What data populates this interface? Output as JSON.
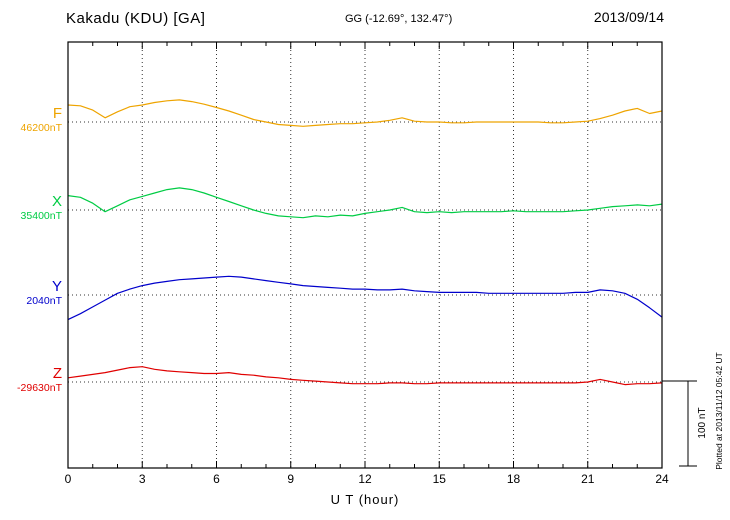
{
  "header": {
    "title": "Kakadu (KDU)  [GA]",
    "coords": "GG (-12.69°, 132.47°)",
    "date": "2013/09/14"
  },
  "axis": {
    "xlabel": "U T (hour)",
    "tick_hours": [
      0,
      3,
      6,
      9,
      12,
      15,
      18,
      21,
      24
    ],
    "tick_labels": [
      "0",
      "3",
      "6",
      "9",
      "12",
      "15",
      "18",
      "21",
      "24"
    ]
  },
  "scalebar": {
    "label": "100 nT",
    "span_nT": 100
  },
  "footer": {
    "plotted_at": "Plotted at 2013/11/12 05:42 UT"
  },
  "chart_data": {
    "type": "line",
    "title": "Kakadu (KDU) [GA] magnetogram 2013/09/14",
    "xlabel": "U T (hour)",
    "xlim": [
      0,
      24
    ],
    "x_step_hours": 0.5,
    "grid": "dotted vertical every 3 h, dotted baseline per component",
    "series": [
      {
        "name": "F",
        "baseline_label": "46200nT",
        "baseline_nT": 46200,
        "color": "#eea400",
        "offsets_nT": [
          20,
          19,
          14,
          5,
          12,
          18,
          20,
          23,
          25,
          26,
          24,
          21,
          17,
          13,
          8,
          3,
          0,
          -3,
          -4,
          -5,
          -4,
          -3,
          -2,
          -2,
          -1,
          0,
          2,
          5,
          1,
          0,
          0,
          -1,
          -1,
          0,
          0,
          0,
          0,
          0,
          0,
          -1,
          -1,
          0,
          1,
          4,
          8,
          13,
          16,
          10,
          13
        ]
      },
      {
        "name": "X",
        "baseline_label": "35400nT",
        "baseline_nT": 35400,
        "color": "#00cc44",
        "offsets_nT": [
          17,
          15,
          8,
          -2,
          5,
          12,
          16,
          20,
          24,
          26,
          24,
          20,
          15,
          10,
          5,
          0,
          -4,
          -7,
          -8,
          -9,
          -7,
          -8,
          -6,
          -7,
          -4,
          -2,
          0,
          3,
          -2,
          -3,
          -2,
          -3,
          -2,
          -2,
          -2,
          -2,
          -1,
          -2,
          -2,
          -2,
          -2,
          -1,
          0,
          2,
          4,
          5,
          6,
          5,
          7
        ]
      },
      {
        "name": "Y",
        "baseline_label": "2040nT",
        "baseline_nT": 2040,
        "color": "#0000cc",
        "offsets_nT": [
          -29,
          -22,
          -14,
          -6,
          2,
          7,
          11,
          14,
          16,
          18,
          19,
          20,
          21,
          22,
          21,
          19,
          17,
          15,
          13,
          11,
          10,
          9,
          8,
          7,
          7,
          6,
          6,
          7,
          5,
          4,
          3,
          3,
          3,
          3,
          2,
          2,
          2,
          2,
          2,
          2,
          2,
          3,
          3,
          6,
          5,
          2,
          -5,
          -15,
          -26
        ]
      },
      {
        "name": "Z",
        "baseline_label": "-29630nT",
        "baseline_nT": -29630,
        "color": "#e00000",
        "offsets_nT": [
          5,
          7,
          9,
          11,
          14,
          17,
          18,
          15,
          13,
          12,
          11,
          10,
          10,
          11,
          9,
          8,
          6,
          5,
          3,
          2,
          1,
          0,
          -1,
          -2,
          -2,
          -2,
          -1,
          -1,
          -2,
          -2,
          -1,
          -1,
          -1,
          -1,
          -1,
          -1,
          -1,
          -1,
          -1,
          -1,
          -1,
          -1,
          0,
          3,
          0,
          -3,
          -2,
          -2,
          -1
        ]
      }
    ]
  }
}
